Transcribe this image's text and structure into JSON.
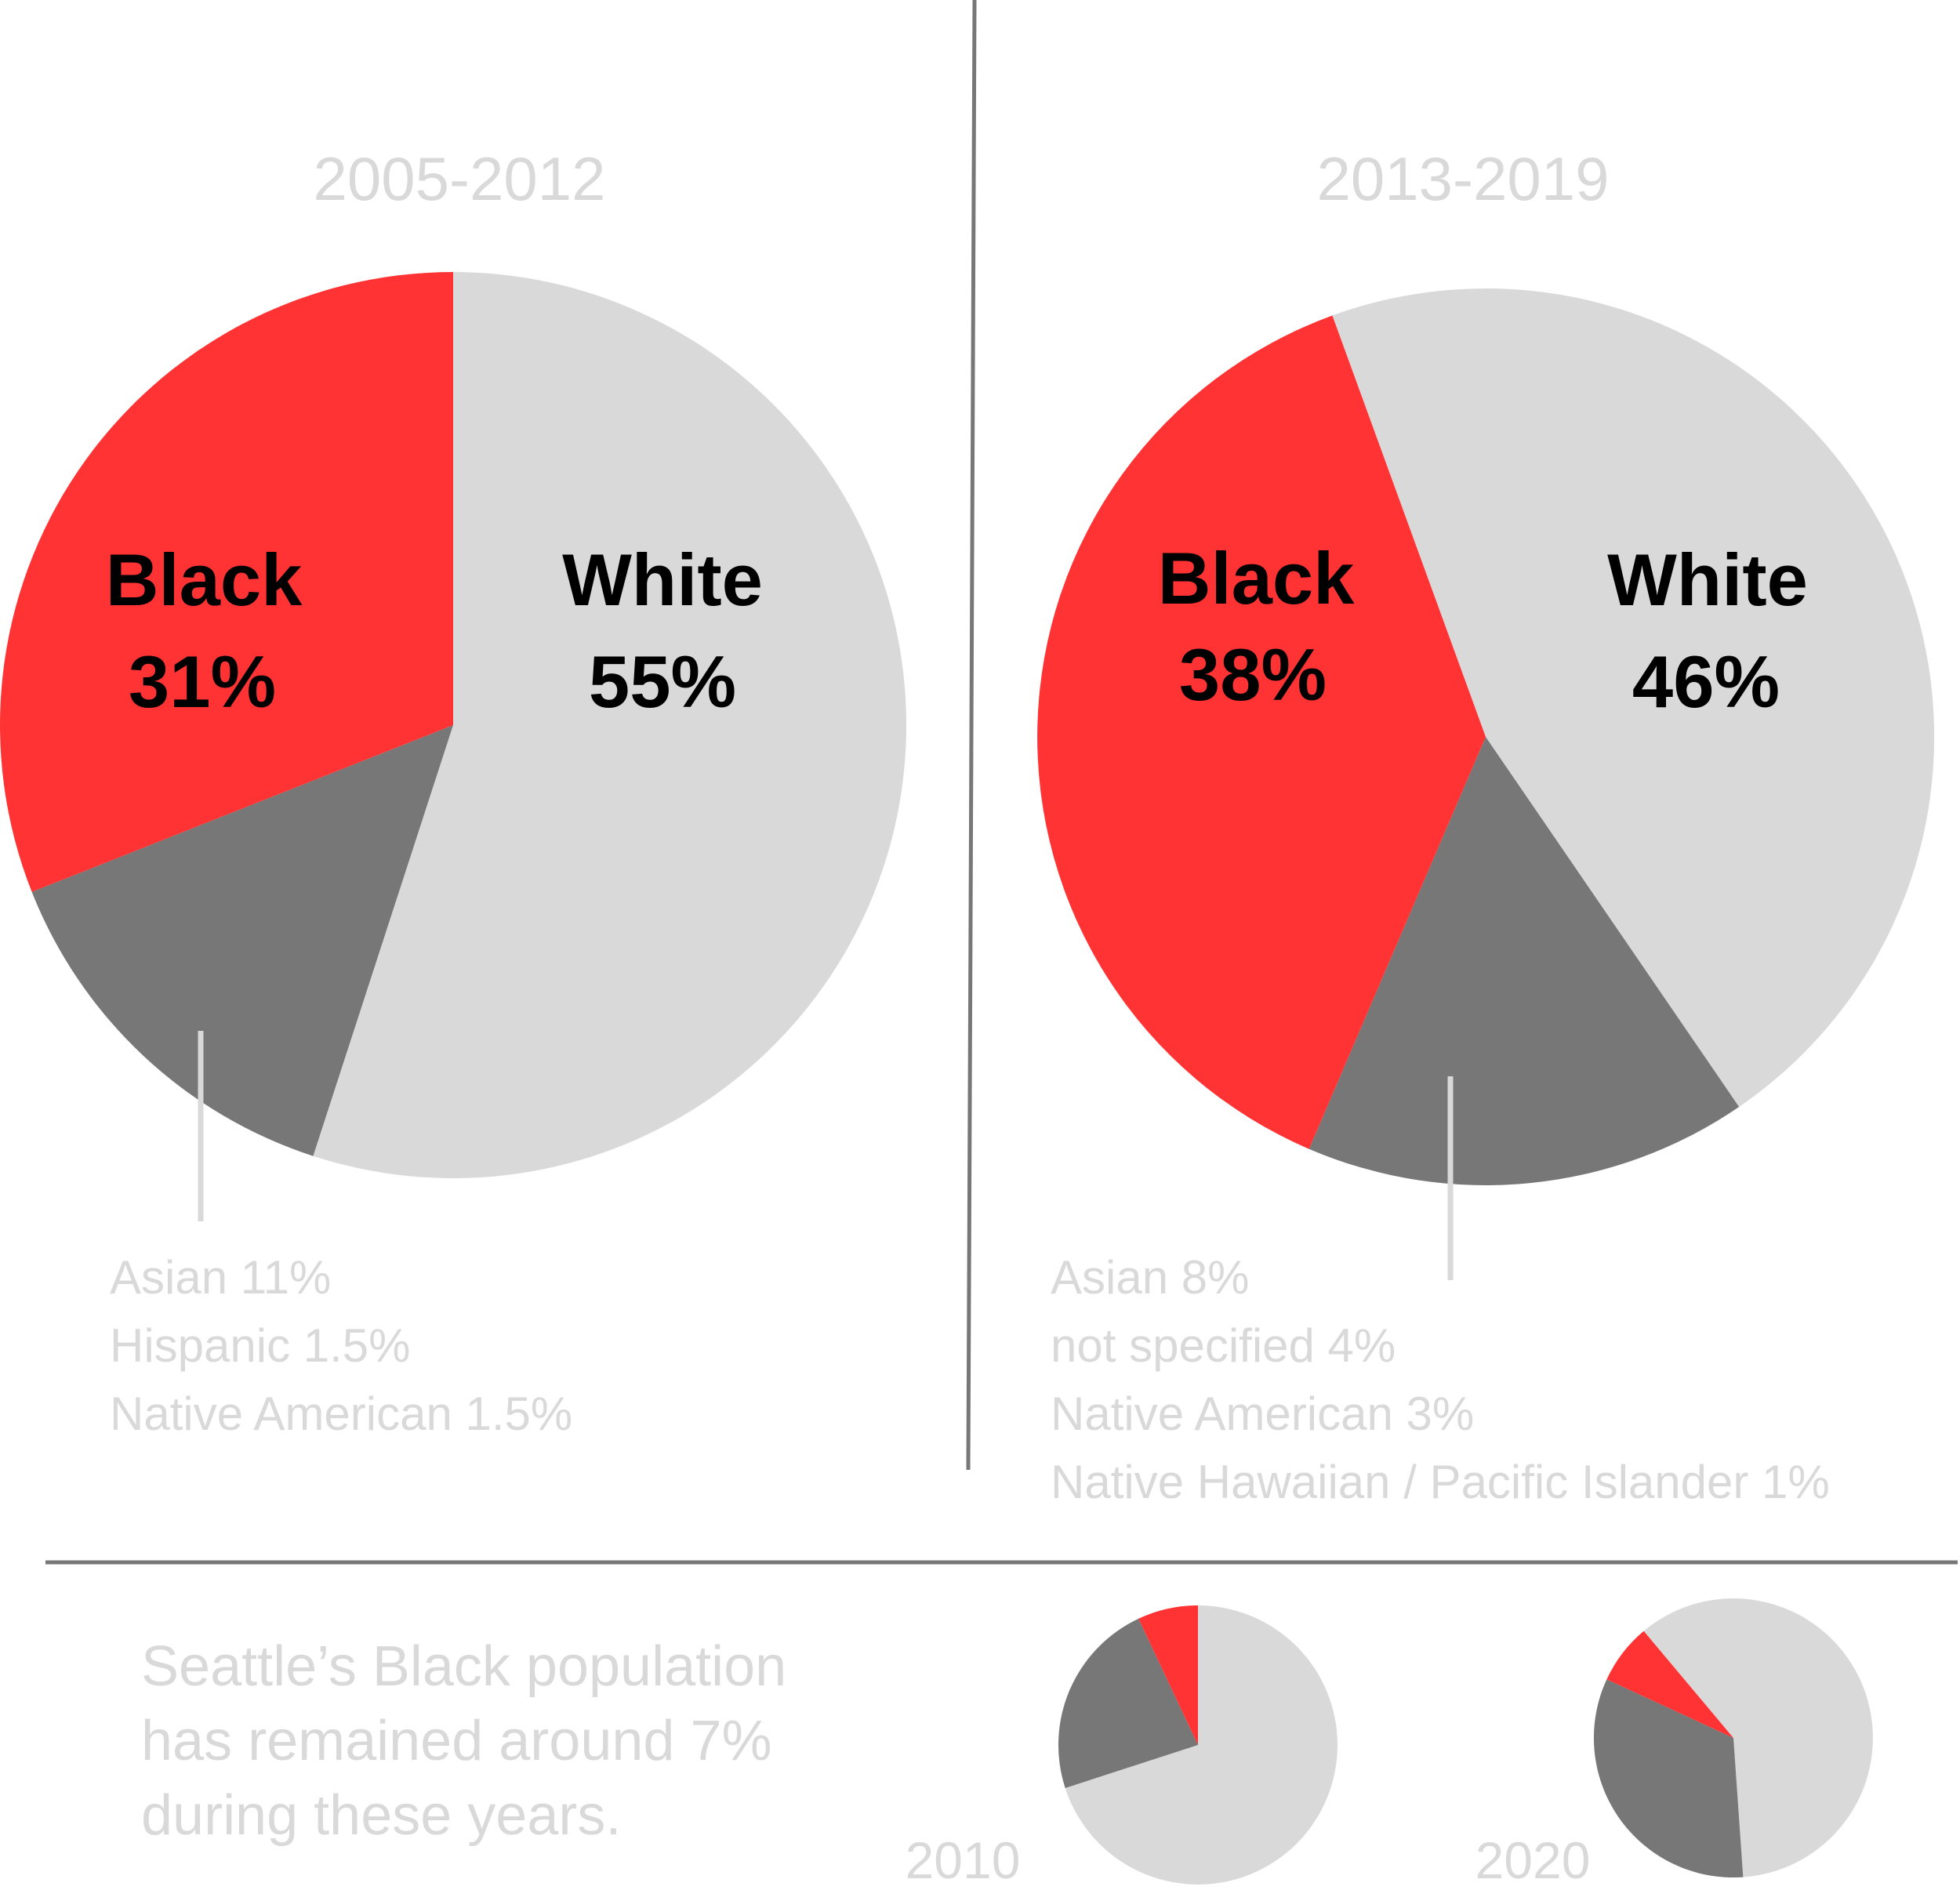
{
  "colors": {
    "black_group": "#ff3333",
    "white_group": "#d9d9d9",
    "other_group": "#767776",
    "muted_text": "#d9d9d9",
    "divider": "#767776"
  },
  "chart_data": [
    {
      "type": "pie",
      "title": "2005-2012",
      "slices": [
        {
          "label": "White",
          "value": 55,
          "display": "55%"
        },
        {
          "label": "Other",
          "value": 14
        },
        {
          "label": "Black",
          "value": 31,
          "display": "31%"
        }
      ],
      "other_breakdown": [
        "Asian 11%",
        "Hispanic 1.5%",
        "Native American 1.5%"
      ]
    },
    {
      "type": "pie",
      "title": "2013-2019",
      "slices": [
        {
          "label": "White",
          "value": 46,
          "display": "46%"
        },
        {
          "label": "Other",
          "value": 16
        },
        {
          "label": "Black",
          "value": 38,
          "display": "38%"
        }
      ],
      "other_breakdown": [
        "Asian 8%",
        "not specified 4%",
        "Native American 3%",
        "Native Hawaiian / Pacific Islander 1%"
      ]
    },
    {
      "type": "pie",
      "title": "2010",
      "slices": [
        {
          "label": "White",
          "value": 70
        },
        {
          "label": "Other",
          "value": 23
        },
        {
          "label": "Black",
          "value": 7
        }
      ]
    },
    {
      "type": "pie",
      "title": "2020",
      "slices": [
        {
          "label": "White",
          "value": 60
        },
        {
          "label": "Other",
          "value": 33
        },
        {
          "label": "Black",
          "value": 7
        }
      ]
    }
  ],
  "note": [
    "Seattle’s Black population",
    "has remained around 7%",
    "during these years."
  ]
}
